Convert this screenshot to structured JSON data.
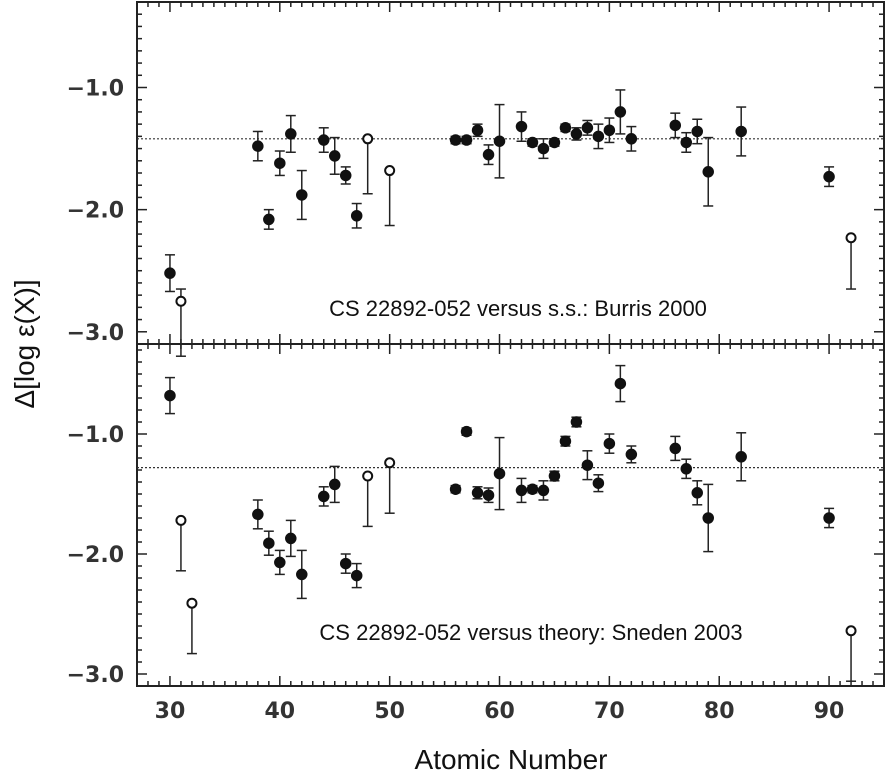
{
  "chart_data": {
    "type": "scatter",
    "xlabel": "Atomic Number",
    "ylabel": "Δ[log ε(X)]",
    "xlim": [
      27,
      95
    ],
    "x_ticks": [
      30,
      40,
      50,
      60,
      70,
      80,
      90
    ],
    "grid": false,
    "panels": [
      {
        "label": "CS 22892-052 versus s.s.: Burris 2000",
        "ylim": [
          -3.1,
          -0.3
        ],
        "y_ticks": [
          -1.0,
          -2.0,
          -3.0
        ],
        "y_tick_labels": [
          "−1.0",
          "−2.0",
          "−3.0"
        ],
        "reference_level": -1.42,
        "series": [
          {
            "marker": "filled",
            "points": [
              {
                "x": 30,
                "y": -2.52,
                "err_lo": 0.15,
                "err_hi": 0.15
              },
              {
                "x": 38,
                "y": -1.48,
                "err_lo": 0.12,
                "err_hi": 0.12
              },
              {
                "x": 39,
                "y": -2.08,
                "err_lo": 0.08,
                "err_hi": 0.08
              },
              {
                "x": 40,
                "y": -1.62,
                "err_lo": 0.1,
                "err_hi": 0.1
              },
              {
                "x": 41,
                "y": -1.38,
                "err_lo": 0.15,
                "err_hi": 0.15
              },
              {
                "x": 42,
                "y": -1.88,
                "err_lo": 0.2,
                "err_hi": 0.2
              },
              {
                "x": 44,
                "y": -1.43,
                "err_lo": 0.1,
                "err_hi": 0.1
              },
              {
                "x": 45,
                "y": -1.56,
                "err_lo": 0.15,
                "err_hi": 0.15
              },
              {
                "x": 46,
                "y": -1.72,
                "err_lo": 0.07,
                "err_hi": 0.07
              },
              {
                "x": 47,
                "y": -2.05,
                "err_lo": 0.1,
                "err_hi": 0.1
              },
              {
                "x": 56,
                "y": -1.43,
                "err_lo": 0.03,
                "err_hi": 0.03
              },
              {
                "x": 57,
                "y": -1.43,
                "err_lo": 0.03,
                "err_hi": 0.03
              },
              {
                "x": 58,
                "y": -1.35,
                "err_lo": 0.05,
                "err_hi": 0.05
              },
              {
                "x": 59,
                "y": -1.55,
                "err_lo": 0.08,
                "err_hi": 0.08
              },
              {
                "x": 60,
                "y": -1.44,
                "err_lo": 0.3,
                "err_hi": 0.3
              },
              {
                "x": 62,
                "y": -1.32,
                "err_lo": 0.12,
                "err_hi": 0.12
              },
              {
                "x": 63,
                "y": -1.45,
                "err_lo": 0.03,
                "err_hi": 0.03
              },
              {
                "x": 64,
                "y": -1.5,
                "err_lo": 0.08,
                "err_hi": 0.08
              },
              {
                "x": 65,
                "y": -1.45,
                "err_lo": 0.03,
                "err_hi": 0.03
              },
              {
                "x": 66,
                "y": -1.33,
                "err_lo": 0.03,
                "err_hi": 0.03
              },
              {
                "x": 67,
                "y": -1.38,
                "err_lo": 0.05,
                "err_hi": 0.05
              },
              {
                "x": 68,
                "y": -1.33,
                "err_lo": 0.06,
                "err_hi": 0.06
              },
              {
                "x": 69,
                "y": -1.4,
                "err_lo": 0.1,
                "err_hi": 0.1
              },
              {
                "x": 70,
                "y": -1.35,
                "err_lo": 0.1,
                "err_hi": 0.1
              },
              {
                "x": 71,
                "y": -1.2,
                "err_lo": 0.18,
                "err_hi": 0.18
              },
              {
                "x": 72,
                "y": -1.42,
                "err_lo": 0.1,
                "err_hi": 0.1
              },
              {
                "x": 76,
                "y": -1.31,
                "err_lo": 0.1,
                "err_hi": 0.1
              },
              {
                "x": 77,
                "y": -1.45,
                "err_lo": 0.08,
                "err_hi": 0.08
              },
              {
                "x": 78,
                "y": -1.36,
                "err_lo": 0.1,
                "err_hi": 0.1
              },
              {
                "x": 79,
                "y": -1.69,
                "err_lo": 0.28,
                "err_hi": 0.28
              },
              {
                "x": 82,
                "y": -1.36,
                "err_lo": 0.2,
                "err_hi": 0.2
              },
              {
                "x": 90,
                "y": -1.73,
                "err_lo": 0.08,
                "err_hi": 0.08
              }
            ]
          },
          {
            "marker": "open",
            "points": [
              {
                "x": 31,
                "y": -2.75,
                "err_lo": 0.45,
                "err_hi": 0.1
              },
              {
                "x": 48,
                "y": -1.42,
                "err_lo": 0.45,
                "err_hi": 0.0
              },
              {
                "x": 50,
                "y": -1.68,
                "err_lo": 0.45,
                "err_hi": 0.0
              },
              {
                "x": 92,
                "y": -2.23,
                "err_lo": 0.42,
                "err_hi": 0.0
              }
            ]
          }
        ]
      },
      {
        "label": "CS 22892-052 versus theory: Sneden 2003",
        "ylim": [
          -3.1,
          -0.25
        ],
        "y_ticks": [
          -1.0,
          -2.0,
          -3.0
        ],
        "y_tick_labels": [
          "−1.0",
          "−2.0",
          "−3.0"
        ],
        "reference_level": -1.28,
        "series": [
          {
            "marker": "filled",
            "points": [
              {
                "x": 30,
                "y": -0.68,
                "err_lo": 0.15,
                "err_hi": 0.15
              },
              {
                "x": 38,
                "y": -1.67,
                "err_lo": 0.12,
                "err_hi": 0.12
              },
              {
                "x": 39,
                "y": -1.91,
                "err_lo": 0.1,
                "err_hi": 0.1
              },
              {
                "x": 40,
                "y": -2.07,
                "err_lo": 0.1,
                "err_hi": 0.1
              },
              {
                "x": 41,
                "y": -1.87,
                "err_lo": 0.15,
                "err_hi": 0.15
              },
              {
                "x": 42,
                "y": -2.17,
                "err_lo": 0.2,
                "err_hi": 0.2
              },
              {
                "x": 44,
                "y": -1.52,
                "err_lo": 0.08,
                "err_hi": 0.08
              },
              {
                "x": 45,
                "y": -1.42,
                "err_lo": 0.15,
                "err_hi": 0.15
              },
              {
                "x": 46,
                "y": -2.08,
                "err_lo": 0.08,
                "err_hi": 0.08
              },
              {
                "x": 47,
                "y": -2.18,
                "err_lo": 0.1,
                "err_hi": 0.1
              },
              {
                "x": 56,
                "y": -1.46,
                "err_lo": 0.03,
                "err_hi": 0.03
              },
              {
                "x": 57,
                "y": -0.98,
                "err_lo": 0.03,
                "err_hi": 0.03
              },
              {
                "x": 58,
                "y": -1.49,
                "err_lo": 0.05,
                "err_hi": 0.05
              },
              {
                "x": 59,
                "y": -1.51,
                "err_lo": 0.06,
                "err_hi": 0.06
              },
              {
                "x": 60,
                "y": -1.33,
                "err_lo": 0.3,
                "err_hi": 0.3
              },
              {
                "x": 62,
                "y": -1.47,
                "err_lo": 0.1,
                "err_hi": 0.1
              },
              {
                "x": 63,
                "y": -1.46,
                "err_lo": 0.03,
                "err_hi": 0.03
              },
              {
                "x": 64,
                "y": -1.47,
                "err_lo": 0.08,
                "err_hi": 0.08
              },
              {
                "x": 65,
                "y": -1.35,
                "err_lo": 0.04,
                "err_hi": 0.04
              },
              {
                "x": 66,
                "y": -1.06,
                "err_lo": 0.04,
                "err_hi": 0.04
              },
              {
                "x": 67,
                "y": -0.9,
                "err_lo": 0.04,
                "err_hi": 0.04
              },
              {
                "x": 68,
                "y": -1.26,
                "err_lo": 0.12,
                "err_hi": 0.12
              },
              {
                "x": 69,
                "y": -1.41,
                "err_lo": 0.07,
                "err_hi": 0.07
              },
              {
                "x": 70,
                "y": -1.08,
                "err_lo": 0.08,
                "err_hi": 0.08
              },
              {
                "x": 71,
                "y": -0.58,
                "err_lo": 0.15,
                "err_hi": 0.15
              },
              {
                "x": 72,
                "y": -1.17,
                "err_lo": 0.07,
                "err_hi": 0.07
              },
              {
                "x": 76,
                "y": -1.12,
                "err_lo": 0.1,
                "err_hi": 0.1
              },
              {
                "x": 77,
                "y": -1.29,
                "err_lo": 0.08,
                "err_hi": 0.08
              },
              {
                "x": 78,
                "y": -1.49,
                "err_lo": 0.1,
                "err_hi": 0.1
              },
              {
                "x": 79,
                "y": -1.7,
                "err_lo": 0.28,
                "err_hi": 0.28
              },
              {
                "x": 82,
                "y": -1.19,
                "err_lo": 0.2,
                "err_hi": 0.2
              },
              {
                "x": 90,
                "y": -1.7,
                "err_lo": 0.08,
                "err_hi": 0.08
              }
            ]
          },
          {
            "marker": "open",
            "points": [
              {
                "x": 31,
                "y": -1.72,
                "err_lo": 0.42,
                "err_hi": 0.0
              },
              {
                "x": 32,
                "y": -2.41,
                "err_lo": 0.42,
                "err_hi": 0.0
              },
              {
                "x": 48,
                "y": -1.35,
                "err_lo": 0.42,
                "err_hi": 0.0
              },
              {
                "x": 50,
                "y": -1.24,
                "err_lo": 0.42,
                "err_hi": 0.0
              },
              {
                "x": 92,
                "y": -2.64,
                "err_lo": 0.42,
                "err_hi": 0.0
              }
            ]
          }
        ]
      }
    ]
  }
}
